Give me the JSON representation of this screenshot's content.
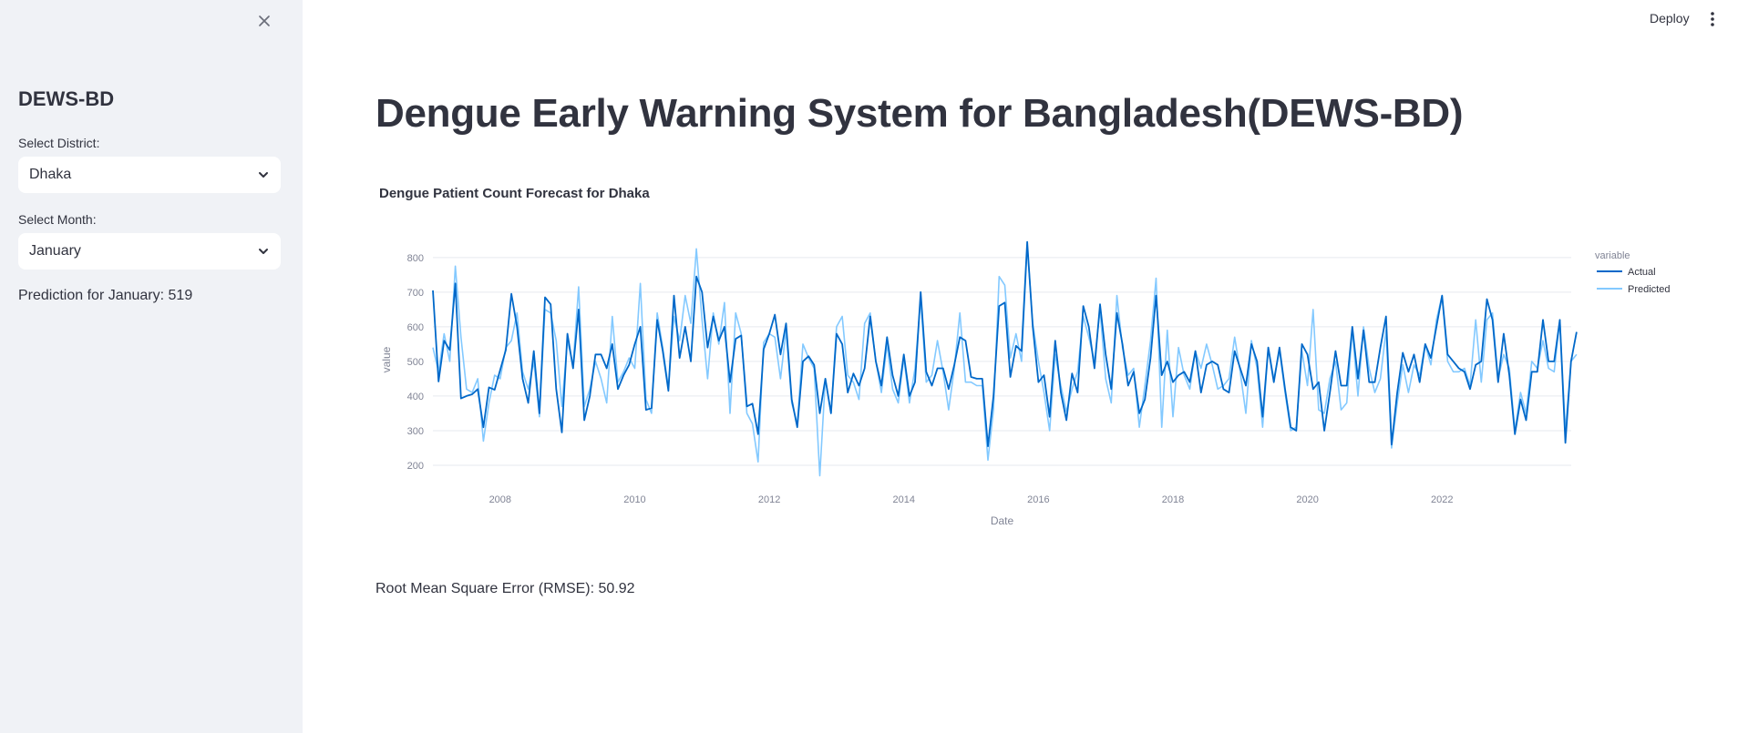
{
  "sidebar": {
    "close_icon": "close-icon",
    "title": "DEWS-BD",
    "district_label": "Select District:",
    "district_value": "Dhaka",
    "month_label": "Select Month:",
    "month_value": "January",
    "prediction": "Prediction for January: 519"
  },
  "header": {
    "deploy_label": "Deploy",
    "menu_icon": "kebab-menu-icon"
  },
  "main": {
    "title": "Dengue Early Warning System for Bangladesh(DEWS-BD)",
    "rmse": "Root Mean Square Error (RMSE): 50.92"
  },
  "chart_data": {
    "type": "line",
    "title": "Dengue Patient Count Forecast for Dhaka",
    "xlabel": "Date",
    "ylabel": "value",
    "legend_title": "variable",
    "legend_position": "right",
    "grid": true,
    "xlim": [
      2007.0,
      2023.92
    ],
    "ylim": [
      150,
      860
    ],
    "x_ticks": [
      2008,
      2010,
      2012,
      2014,
      2016,
      2018,
      2020,
      2022
    ],
    "y_ticks": [
      200,
      300,
      400,
      500,
      600,
      700,
      800
    ],
    "x_start": 2007.0,
    "x_step_months": 1,
    "series": [
      {
        "name": "Actual",
        "color": "#0068c9",
        "values": [
          705,
          442,
          560,
          533,
          725,
          393,
          400,
          405,
          420,
          310,
          425,
          418,
          475,
          533,
          695,
          600,
          450,
          380,
          530,
          350,
          685,
          665,
          420,
          295,
          580,
          480,
          650,
          330,
          400,
          520,
          520,
          480,
          550,
          420,
          460,
          490,
          550,
          600,
          360,
          365,
          620,
          530,
          415,
          690,
          510,
          600,
          500,
          745,
          700,
          540,
          630,
          560,
          600,
          440,
          565,
          575,
          370,
          378,
          290,
          535,
          580,
          635,
          520,
          610,
          390,
          310,
          500,
          515,
          490,
          350,
          450,
          350,
          580,
          550,
          410,
          465,
          430,
          480,
          630,
          500,
          430,
          570,
          460,
          400,
          520,
          400,
          440,
          700,
          470,
          430,
          480,
          480,
          420,
          490,
          570,
          560,
          455,
          450,
          450,
          255,
          400,
          660,
          670,
          455,
          545,
          530,
          845,
          600,
          440,
          460,
          340,
          560,
          410,
          330,
          465,
          410,
          660,
          600,
          480,
          665,
          520,
          420,
          640,
          550,
          430,
          470,
          350,
          390,
          510,
          690,
          460,
          500,
          440,
          460,
          470,
          440,
          530,
          410,
          490,
          500,
          490,
          420,
          410,
          530,
          480,
          430,
          550,
          500,
          340,
          540,
          440,
          540,
          420,
          310,
          300,
          550,
          520,
          420,
          440,
          300,
          410,
          530,
          430,
          430,
          600,
          450,
          590,
          440,
          440,
          540,
          630,
          260,
          410,
          525,
          470,
          520,
          440,
          550,
          510,
          600,
          690,
          520,
          500,
          480,
          470,
          420,
          490,
          500,
          680,
          620,
          440,
          580,
          460,
          290,
          390,
          330,
          470,
          470,
          620,
          500,
          500,
          620,
          265,
          500,
          585
        ]
      },
      {
        "name": "Predicted",
        "color": "#83c9ff",
        "values": [
          540,
          470,
          580,
          500,
          775,
          570,
          420,
          410,
          450,
          270,
          380,
          460,
          450,
          540,
          560,
          640,
          470,
          420,
          500,
          340,
          650,
          640,
          560,
          370,
          560,
          490,
          715,
          370,
          420,
          500,
          450,
          380,
          630,
          440,
          470,
          510,
          480,
          725,
          390,
          350,
          640,
          540,
          425,
          630,
          560,
          690,
          610,
          825,
          620,
          450,
          640,
          550,
          670,
          350,
          640,
          580,
          350,
          320,
          210,
          555,
          580,
          570,
          450,
          590,
          380,
          320,
          550,
          510,
          480,
          170,
          450,
          350,
          600,
          630,
          460,
          440,
          390,
          610,
          640,
          500,
          410,
          550,
          420,
          380,
          510,
          380,
          480,
          680,
          440,
          460,
          560,
          470,
          360,
          480,
          640,
          440,
          440,
          430,
          430,
          215,
          360,
          745,
          720,
          510,
          580,
          500,
          835,
          610,
          500,
          410,
          300,
          520,
          430,
          355,
          420,
          470,
          630,
          570,
          500,
          650,
          450,
          380,
          690,
          540,
          460,
          480,
          310,
          430,
          560,
          740,
          310,
          590,
          340,
          540,
          460,
          420,
          530,
          480,
          550,
          490,
          420,
          430,
          450,
          570,
          470,
          350,
          560,
          480,
          310,
          540,
          450,
          530,
          410,
          300,
          310,
          530,
          430,
          650,
          360,
          350,
          450,
          500,
          360,
          380,
          590,
          400,
          600,
          480,
          410,
          450,
          590,
          250,
          380,
          490,
          410,
          490,
          460,
          550,
          490,
          620,
          690,
          500,
          470,
          470,
          480,
          430,
          620,
          440,
          620,
          640,
          450,
          520,
          480,
          300,
          410,
          350,
          500,
          480,
          560,
          480,
          470,
          620,
          300,
          500,
          520
        ]
      }
    ]
  }
}
